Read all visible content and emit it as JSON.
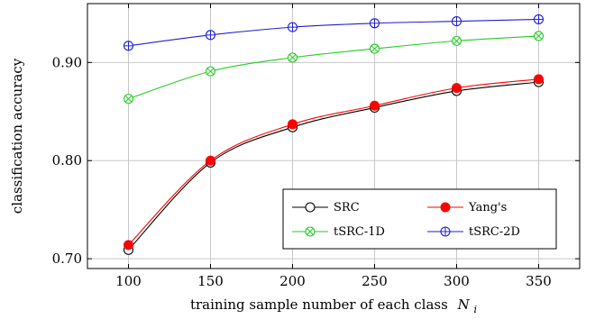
{
  "chart_data": {
    "type": "line",
    "title": "",
    "xlabel": "training sample number of each class",
    "xlabel_symbol": "N",
    "xlabel_subscript": "i",
    "ylabel": "classification accuracy",
    "x": [
      100,
      150,
      200,
      250,
      300,
      350
    ],
    "x_ticks": [
      "100",
      "150",
      "200",
      "250",
      "300",
      "350"
    ],
    "y_ticks": [
      {
        "value": 0.7,
        "label": "0.70"
      },
      {
        "value": 0.8,
        "label": "0.80"
      },
      {
        "value": 0.9,
        "label": "0.90"
      }
    ],
    "xlim": [
      75,
      375
    ],
    "ylim": [
      0.69,
      0.96
    ],
    "grid": true,
    "legend_position": "bottom-right",
    "series": [
      {
        "name": "SRC",
        "color": "#000000",
        "marker": "circle-open",
        "values": [
          0.709,
          0.798,
          0.834,
          0.854,
          0.871,
          0.88
        ]
      },
      {
        "name": "Yang's",
        "color": "#ff0000",
        "marker": "circle-filled",
        "values": [
          0.714,
          0.8,
          0.837,
          0.856,
          0.874,
          0.883
        ]
      },
      {
        "name": "tSRC-1D",
        "color": "#22cc22",
        "marker": "circle-x",
        "values": [
          0.863,
          0.891,
          0.905,
          0.914,
          0.922,
          0.927
        ]
      },
      {
        "name": "tSRC-2D",
        "color": "#1f1fd0",
        "marker": "circle-plus",
        "values": [
          0.917,
          0.928,
          0.936,
          0.94,
          0.942,
          0.944
        ]
      }
    ]
  }
}
